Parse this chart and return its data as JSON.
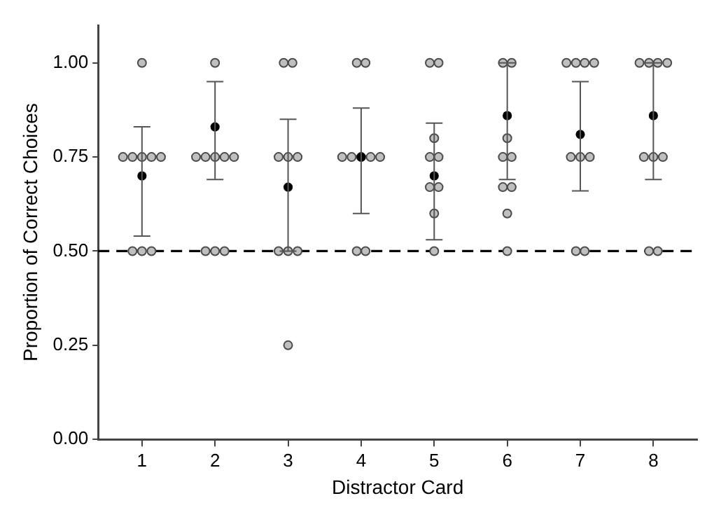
{
  "chart_data": {
    "type": "scatter",
    "xlabel": "Distractor Card",
    "ylabel": "Proportion of Correct Choices",
    "xlim": [
      0.4,
      8.6
    ],
    "xticks": [
      1,
      2,
      3,
      4,
      5,
      6,
      7,
      8
    ],
    "ylim": [
      0,
      1.1
    ],
    "yticks": [
      {
        "value": 0,
        "label": "0.00"
      },
      {
        "value": 0.25,
        "label": "0.25"
      },
      {
        "value": 0.5,
        "label": "0.50"
      },
      {
        "value": 0.75,
        "label": "0.75"
      },
      {
        "value": 1,
        "label": "1.00"
      }
    ],
    "grid": false,
    "legend": false,
    "marker": "circle",
    "ref_lines": [
      {
        "axis": "y",
        "value": 0.5,
        "label": null,
        "color": "#000000",
        "line_style": "dashed"
      }
    ],
    "series": [
      {
        "color": "#bfbfbf",
        "x": [
          1,
          0.74,
          0.87,
          1,
          1.13,
          1.26,
          0.87,
          1,
          1.13,
          2,
          1.74,
          1.87,
          2,
          2.13,
          2.26,
          1.87,
          2,
          2.13,
          2.94,
          3.06,
          2.87,
          3,
          3.13,
          2.87,
          3,
          3.13,
          3,
          3.94,
          4.06,
          3.74,
          3.87,
          4,
          4.13,
          4.26,
          3.94,
          4.06,
          4.94,
          5.06,
          5,
          4.94,
          5.06,
          4.94,
          5.06,
          5,
          5,
          5.94,
          6.06,
          6,
          5.94,
          6.06,
          5.94,
          6.06,
          6,
          6,
          6.81,
          6.94,
          7.06,
          7.19,
          6.87,
          7,
          7.13,
          6.94,
          7.06,
          7.81,
          7.94,
          8.06,
          8.19,
          7.87,
          8,
          8.13,
          7.94,
          8.06
        ],
        "values": [
          1,
          0.75,
          0.75,
          0.75,
          0.75,
          0.75,
          0.5,
          0.5,
          0.5,
          1,
          0.75,
          0.75,
          0.75,
          0.75,
          0.75,
          0.5,
          0.5,
          0.5,
          1,
          1,
          0.75,
          0.75,
          0.75,
          0.5,
          0.5,
          0.5,
          0.25,
          1,
          1,
          0.75,
          0.75,
          0.75,
          0.75,
          0.75,
          0.5,
          0.5,
          1,
          1,
          0.8,
          0.75,
          0.75,
          0.67,
          0.67,
          0.6,
          0.5,
          1,
          1,
          0.8,
          0.75,
          0.75,
          0.67,
          0.67,
          0.6,
          0.5,
          1,
          1,
          1,
          1,
          0.75,
          0.75,
          0.75,
          0.5,
          0.5,
          1,
          1,
          1,
          1,
          0.75,
          0.75,
          0.75,
          0.5,
          0.5
        ]
      },
      {
        "color": "#000000",
        "x": [
          1,
          2,
          3,
          4,
          5,
          6,
          7,
          8
        ],
        "values": [
          0.7,
          0.83,
          0.67,
          0.75,
          0.7,
          0.86,
          0.81,
          0.86
        ],
        "errors": [
          [
            0.54,
            0.83
          ],
          [
            0.69,
            0.95
          ],
          [
            0.5,
            0.85
          ],
          [
            0.6,
            0.88
          ],
          [
            0.53,
            0.84
          ],
          [
            0.69,
            1.0
          ],
          [
            0.66,
            0.95
          ],
          [
            0.69,
            1.0
          ]
        ]
      }
    ]
  }
}
